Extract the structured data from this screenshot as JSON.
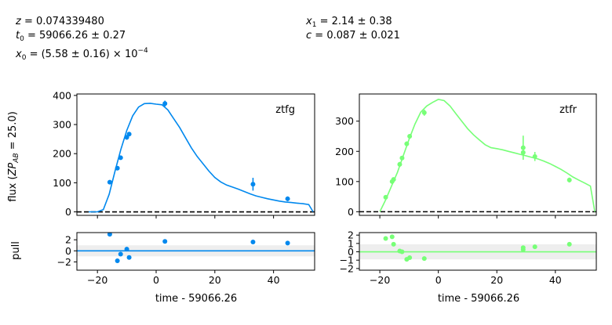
{
  "params": {
    "z": "0.074339480",
    "t0": "59066.26 ± 0.27",
    "x0_mant": "(5.58 ± 0.16) × 10",
    "x0_exp": "−4",
    "x1": "2.14 ± 0.38",
    "c": "0.087 ± 0.021"
  },
  "labels": {
    "ylabel_flux_pre": "flux (",
    "ylabel_flux_zp": "ZP",
    "ylabel_flux_ab": "AB",
    "ylabel_flux_post": " = 25.0)",
    "ylabel_pull": "pull",
    "xlabel": "time - 59066.26"
  },
  "chart_data": [
    {
      "type": "scatter",
      "role": "flux",
      "band": "ztfg",
      "color": "#0088ee",
      "xlim": [
        -27,
        54
      ],
      "ylim": [
        -12,
        405
      ],
      "xticks": [
        -20,
        0,
        20,
        40
      ],
      "yticks": [
        0,
        100,
        200,
        300,
        400
      ],
      "points": [
        {
          "x": -15.8,
          "y": 102,
          "err": 5
        },
        {
          "x": -13.2,
          "y": 150,
          "err": 6
        },
        {
          "x": -12.1,
          "y": 186,
          "err": 6
        },
        {
          "x": -10.0,
          "y": 256,
          "err": 8
        },
        {
          "x": -9.2,
          "y": 267,
          "err": 7
        },
        {
          "x": 3.0,
          "y": 372,
          "err": 10
        },
        {
          "x": 33.0,
          "y": 95,
          "err": 22
        },
        {
          "x": 44.8,
          "y": 45,
          "err": 8
        }
      ],
      "model": {
        "x": [
          -23,
          -20,
          -18,
          -16,
          -14,
          -12,
          -10,
          -8,
          -6,
          -4,
          -2,
          0,
          2,
          4,
          6,
          8,
          10,
          12,
          14,
          16,
          18,
          20,
          22,
          24,
          26,
          28,
          30,
          32,
          34,
          36,
          38,
          40,
          42,
          44,
          46,
          48,
          50,
          52,
          53.5
        ],
        "y": [
          0,
          0,
          8,
          60,
          140,
          215,
          280,
          330,
          360,
          372,
          373,
          370,
          368,
          350,
          320,
          290,
          255,
          220,
          190,
          165,
          140,
          118,
          103,
          92,
          85,
          78,
          70,
          62,
          55,
          50,
          45,
          41,
          37,
          34,
          32,
          30,
          28,
          25,
          0
        ]
      },
      "zero_line": true
    },
    {
      "type": "scatter",
      "role": "flux",
      "band": "ztfr",
      "color": "#77ff77",
      "xlim": [
        -27,
        54
      ],
      "ylim": [
        -12,
        390
      ],
      "xticks": [
        -20,
        0,
        20,
        40
      ],
      "yticks": [
        0,
        100,
        200,
        300
      ],
      "points": [
        {
          "x": -18.0,
          "y": 48,
          "err": 5
        },
        {
          "x": -15.8,
          "y": 100,
          "err": 8
        },
        {
          "x": -15.3,
          "y": 107,
          "err": 6
        },
        {
          "x": -13.2,
          "y": 157,
          "err": 8
        },
        {
          "x": -12.4,
          "y": 178,
          "err": 6
        },
        {
          "x": -10.8,
          "y": 225,
          "err": 8
        },
        {
          "x": -9.8,
          "y": 250,
          "err": 7
        },
        {
          "x": -4.8,
          "y": 328,
          "err": 10
        },
        {
          "x": 29.0,
          "y": 212,
          "err": 40
        },
        {
          "x": 29.0,
          "y": 196,
          "err": 12
        },
        {
          "x": 33.0,
          "y": 183,
          "err": 15
        },
        {
          "x": 44.8,
          "y": 105,
          "err": 8
        }
      ],
      "model": {
        "x": [
          -20,
          -18,
          -16,
          -14,
          -12,
          -10,
          -8,
          -6,
          -4,
          -2,
          0,
          2,
          4,
          6,
          8,
          10,
          12,
          14,
          16,
          18,
          20,
          22,
          24,
          26,
          28,
          30,
          32,
          34,
          36,
          38,
          40,
          42,
          44,
          46,
          48,
          50,
          52,
          53.5
        ],
        "y": [
          0,
          40,
          85,
          130,
          185,
          240,
          290,
          330,
          350,
          362,
          372,
          368,
          350,
          325,
          300,
          275,
          255,
          238,
          222,
          212,
          209,
          205,
          200,
          195,
          190,
          185,
          180,
          175,
          168,
          160,
          150,
          140,
          128,
          115,
          105,
          95,
          85,
          0
        ]
      },
      "zero_line": true
    },
    {
      "type": "scatter",
      "role": "pull",
      "band": "ztfg",
      "color": "#0088ee",
      "xlim": [
        -27,
        54
      ],
      "ylim": [
        -3.5,
        3.3
      ],
      "xticks": [
        -20,
        0,
        20,
        40
      ],
      "yticks": [
        -2,
        0,
        2
      ],
      "points": [
        {
          "x": -15.8,
          "y": 3.0
        },
        {
          "x": -13.2,
          "y": -1.8
        },
        {
          "x": -12.1,
          "y": -0.6
        },
        {
          "x": -10.0,
          "y": 0.3
        },
        {
          "x": -9.2,
          "y": -1.2
        },
        {
          "x": 3.0,
          "y": 1.7
        },
        {
          "x": 33.0,
          "y": 1.6
        },
        {
          "x": 44.8,
          "y": 1.4
        }
      ],
      "band_range": [
        -1,
        1
      ]
    },
    {
      "type": "scatter",
      "role": "pull",
      "band": "ztfr",
      "color": "#77ff77",
      "xlim": [
        -27,
        54
      ],
      "ylim": [
        -2.2,
        2.3
      ],
      "xticks": [
        -20,
        0,
        20,
        40
      ],
      "yticks": [
        -2,
        -1,
        0,
        1,
        2
      ],
      "points": [
        {
          "x": -18.0,
          "y": 1.6
        },
        {
          "x": -15.8,
          "y": 1.8
        },
        {
          "x": -15.3,
          "y": 0.9
        },
        {
          "x": -13.2,
          "y": 0.1
        },
        {
          "x": -12.4,
          "y": 0.0
        },
        {
          "x": -10.8,
          "y": -0.9
        },
        {
          "x": -9.8,
          "y": -0.7
        },
        {
          "x": -4.8,
          "y": -0.8
        },
        {
          "x": 29.0,
          "y": 0.5
        },
        {
          "x": 29.0,
          "y": 0.25
        },
        {
          "x": 33.0,
          "y": 0.6
        },
        {
          "x": 44.8,
          "y": 0.9
        }
      ],
      "band_range": [
        -0.9,
        0.9
      ]
    }
  ]
}
